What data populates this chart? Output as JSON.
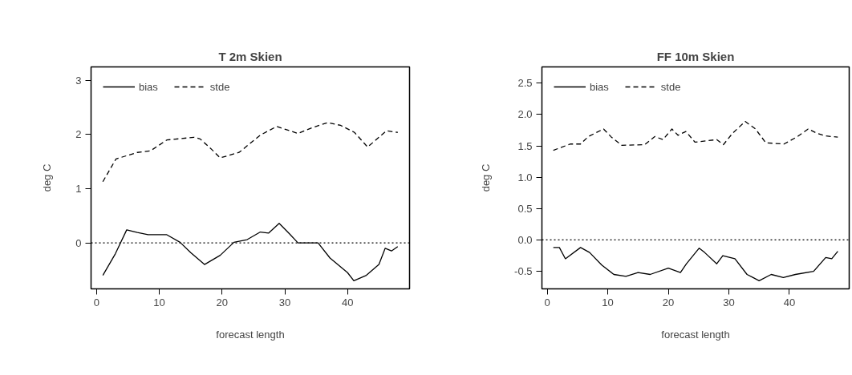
{
  "chart_data": [
    {
      "type": "line",
      "title": "T 2m Skien",
      "xlabel": "forecast length",
      "ylabel": "deg C",
      "xlim": [
        -0.88,
        49.88
      ],
      "ylim": [
        -0.85,
        3.25
      ],
      "xticks": [
        0,
        10,
        20,
        30,
        40
      ],
      "yticks": [
        0,
        1,
        2,
        3
      ],
      "grid": false,
      "legend": "top left",
      "ref_lines": [
        {
          "axis": "y",
          "value": 0,
          "label": null,
          "color": "#000000",
          "line_style": "dotted"
        }
      ],
      "series": [
        {
          "name": "bias",
          "color": "#000000",
          "line_style": "solid",
          "x": [
            1,
            3,
            4.8,
            6.5,
            8.2,
            11.2,
            13.3,
            15,
            17.2,
            19.7,
            21.9,
            24,
            26.1,
            27.4,
            29.1,
            30.8,
            32.1,
            35.3,
            37.2,
            40,
            41,
            43,
            45,
            46,
            47,
            48
          ],
          "values": [
            -0.6,
            -0.2,
            0.24,
            0.19,
            0.15,
            0.15,
            0.01,
            -0.18,
            -0.4,
            -0.23,
            0.01,
            0.06,
            0.2,
            0.18,
            0.36,
            0.16,
            0,
            0,
            -0.28,
            -0.55,
            -0.7,
            -0.6,
            -0.4,
            -0.1,
            -0.15,
            -0.07
          ]
        },
        {
          "name": "stde",
          "color": "#000000",
          "line_style": "dashed",
          "x": [
            1,
            3.1,
            6.5,
            8.6,
            11.2,
            15.5,
            16.5,
            18.4,
            19.7,
            22.7,
            26.1,
            28.7,
            32.1,
            34.2,
            36.8,
            38.9,
            41.1,
            43.2,
            46.2,
            48
          ],
          "values": [
            1.13,
            1.55,
            1.67,
            1.7,
            1.9,
            1.95,
            1.92,
            1.72,
            1.57,
            1.67,
            1.99,
            2.15,
            2.02,
            2.12,
            2.22,
            2.17,
            2.04,
            1.77,
            2.07,
            2.04
          ]
        }
      ]
    },
    {
      "type": "line",
      "title": "FF 10m Skien",
      "xlabel": "forecast length",
      "ylabel": "deg C",
      "xlim": [
        -0.88,
        49.88
      ],
      "ylim": [
        -0.78,
        2.76
      ],
      "xticks": [
        0,
        10,
        20,
        30,
        40
      ],
      "yticks": [
        {
          "value": -0.5,
          "label": "-0.5"
        },
        {
          "value": 0,
          "label": "0.0"
        },
        {
          "value": 0.5,
          "label": "0.5"
        },
        {
          "value": 1,
          "label": "1.0"
        },
        {
          "value": 1.5,
          "label": "1.5"
        },
        {
          "value": 2,
          "label": "2.0"
        },
        {
          "value": 2.5,
          "label": "2.5"
        }
      ],
      "grid": false,
      "legend": "top left",
      "ref_lines": [
        {
          "axis": "y",
          "value": 0,
          "label": null,
          "color": "#000000",
          "line_style": "dotted"
        }
      ],
      "series": [
        {
          "name": "bias",
          "color": "#000000",
          "line_style": "solid",
          "x": [
            1,
            2,
            3,
            5.5,
            7,
            9,
            11,
            13,
            15,
            17,
            20,
            22,
            23,
            25.1,
            26,
            28,
            29,
            31,
            33,
            34,
            35,
            37,
            39,
            41,
            44,
            46,
            47,
            48
          ],
          "values": [
            -0.12,
            -0.12,
            -0.3,
            -0.12,
            -0.2,
            -0.4,
            -0.55,
            -0.58,
            -0.52,
            -0.55,
            -0.45,
            -0.52,
            -0.38,
            -0.13,
            -0.2,
            -0.38,
            -0.25,
            -0.3,
            -0.55,
            -0.6,
            -0.65,
            -0.55,
            -0.6,
            -0.55,
            -0.5,
            -0.28,
            -0.3,
            -0.18
          ]
        },
        {
          "name": "stde",
          "color": "#000000",
          "line_style": "dashed",
          "x": [
            1,
            3.8,
            5.5,
            6.8,
            9.3,
            10.6,
            12.3,
            16.1,
            17.8,
            19.1,
            20.6,
            21.6,
            22.9,
            24.4,
            28,
            29.1,
            30.6,
            32.7,
            34.4,
            36.1,
            39.1,
            41.2,
            43.1,
            44.6,
            45.9,
            48
          ],
          "values": [
            1.43,
            1.53,
            1.53,
            1.65,
            1.77,
            1.64,
            1.51,
            1.52,
            1.65,
            1.6,
            1.77,
            1.67,
            1.73,
            1.56,
            1.6,
            1.52,
            1.7,
            1.89,
            1.77,
            1.55,
            1.53,
            1.64,
            1.77,
            1.7,
            1.66,
            1.64
          ]
        }
      ]
    }
  ]
}
